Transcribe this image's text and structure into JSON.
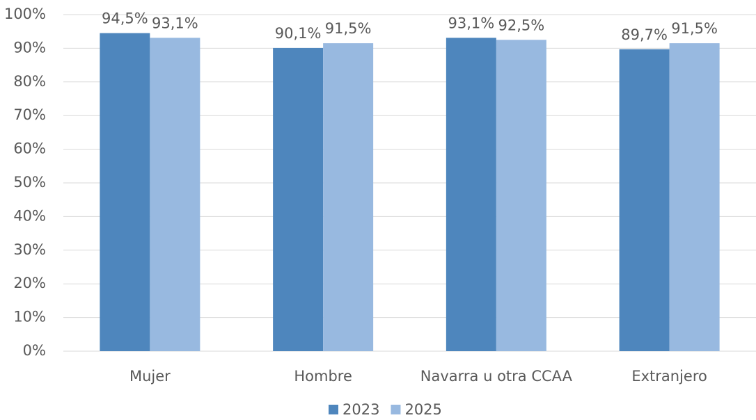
{
  "chart_data": {
    "type": "bar",
    "categories": [
      "Mujer",
      "Hombre",
      "Navarra u otra CCAA",
      "Extranjero"
    ],
    "series": [
      {
        "name": "2023",
        "color": "#4e86bd",
        "values": [
          94.5,
          90.1,
          93.1,
          89.7
        ],
        "value_labels": [
          "94,5%",
          "90,1%",
          "93,1%",
          "89,7%"
        ]
      },
      {
        "name": "2025",
        "color": "#98b9e0",
        "values": [
          93.1,
          91.5,
          92.5,
          91.5
        ],
        "value_labels": [
          "93,1%",
          "91,5%",
          "92,5%",
          "91,5%"
        ]
      }
    ],
    "ylim": [
      0,
      100
    ],
    "yticks": [
      {
        "value": 0,
        "label": "0%"
      },
      {
        "value": 10,
        "label": "10%"
      },
      {
        "value": 20,
        "label": "20%"
      },
      {
        "value": 30,
        "label": "30%"
      },
      {
        "value": 40,
        "label": "40%"
      },
      {
        "value": 50,
        "label": "50%"
      },
      {
        "value": 60,
        "label": "60%"
      },
      {
        "value": 70,
        "label": "70%"
      },
      {
        "value": 80,
        "label": "80%"
      },
      {
        "value": 90,
        "label": "90%"
      },
      {
        "value": 100,
        "label": "100%"
      }
    ],
    "grid": true,
    "legend": "bottom"
  }
}
